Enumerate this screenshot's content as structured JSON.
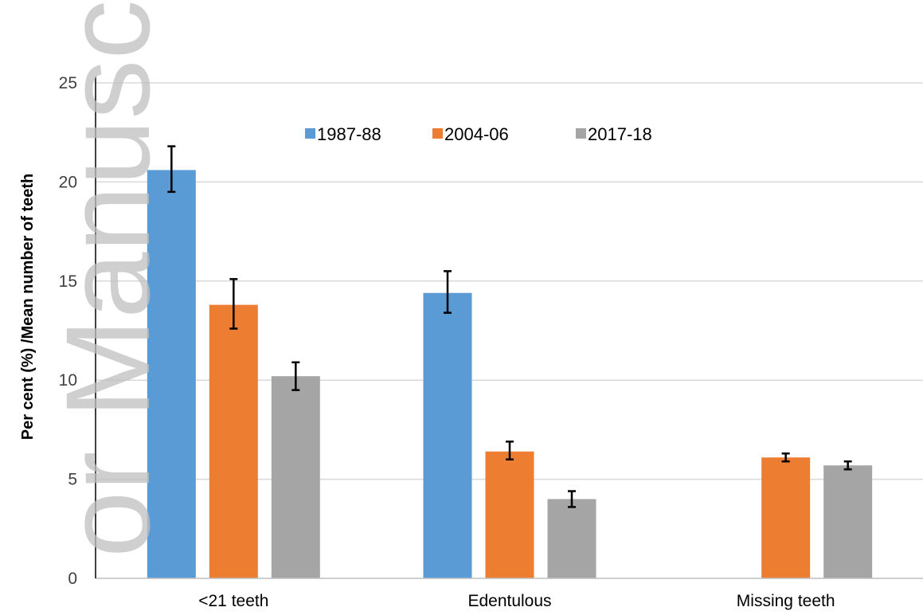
{
  "chart_data": {
    "type": "bar",
    "categories": [
      "<21 teeth",
      "Edentulous",
      "Missing teeth"
    ],
    "series": [
      {
        "name": "1987-88",
        "color": "#5b9bd5",
        "values": [
          20.6,
          14.4,
          null
        ],
        "err_low": [
          19.5,
          13.4,
          null
        ],
        "err_high": [
          21.8,
          15.5,
          null
        ]
      },
      {
        "name": "2004-06",
        "color": "#ed7d31",
        "values": [
          13.8,
          6.4,
          6.1
        ],
        "err_low": [
          12.6,
          6.0,
          5.9
        ],
        "err_high": [
          15.1,
          6.9,
          6.3
        ]
      },
      {
        "name": "2017-18",
        "color": "#a5a5a5",
        "values": [
          10.2,
          4.0,
          5.7
        ],
        "err_low": [
          9.5,
          3.6,
          5.5
        ],
        "err_high": [
          10.9,
          4.4,
          5.9
        ]
      }
    ],
    "ylabel": "Per cent (%) /Mean number of teeth",
    "xlabel": "",
    "ylim": [
      0,
      25
    ],
    "yticks": [
      0,
      5,
      10,
      15,
      20,
      25
    ],
    "grid": true,
    "legend_position": "top-center",
    "error_bars": true
  },
  "watermark_text": "or Manuscript"
}
